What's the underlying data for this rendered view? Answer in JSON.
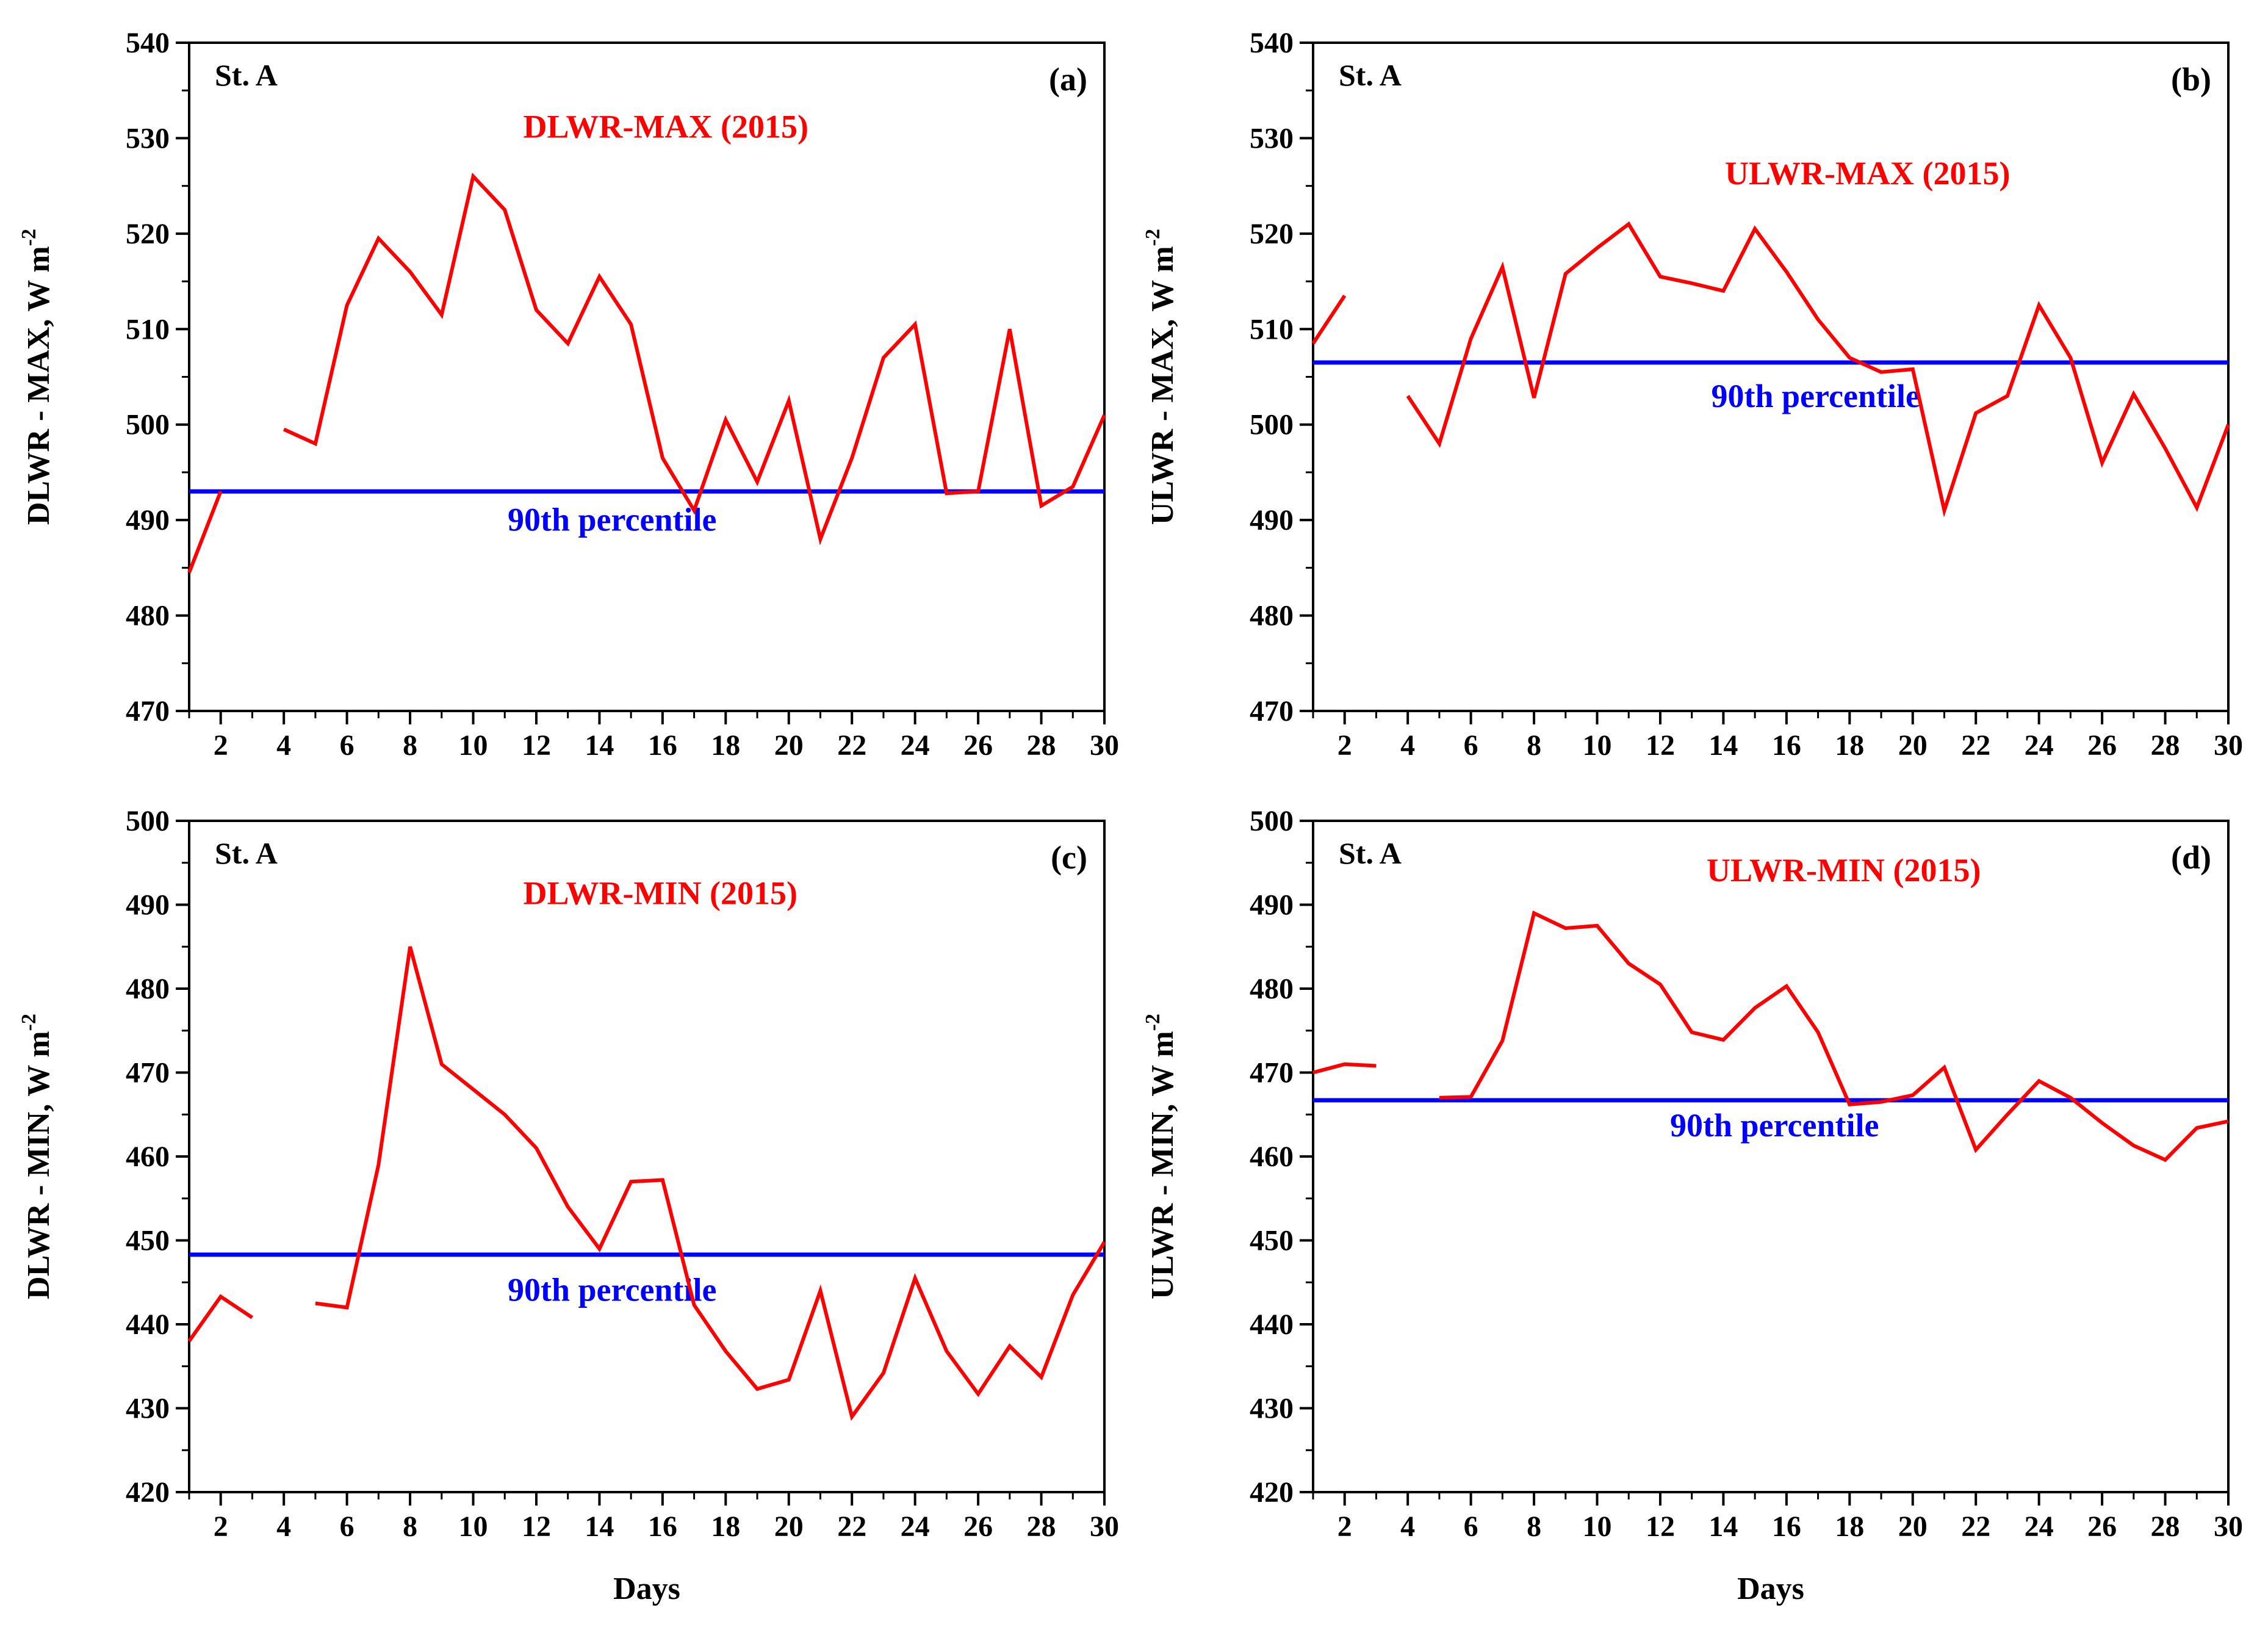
{
  "chart_data": [
    {
      "type": "line",
      "panel": "(a)",
      "station": "St. A",
      "series_label": "DLWR-MAX (2015)",
      "ylabel": "DLWR - MAX,  W m",
      "ylabel_sup": "-2",
      "xlabel": "",
      "ylim": [
        470,
        540
      ],
      "yticks": [
        470,
        480,
        490,
        500,
        510,
        520,
        530,
        540
      ],
      "xlim": [
        1,
        30
      ],
      "xticks": [
        2,
        4,
        6,
        8,
        10,
        12,
        14,
        16,
        18,
        20,
        22,
        24,
        26,
        28,
        30
      ],
      "x": [
        1,
        2,
        3,
        4,
        5,
        6,
        7,
        8,
        9,
        10,
        11,
        12,
        13,
        14,
        15,
        16,
        17,
        18,
        19,
        20,
        21,
        22,
        23,
        24,
        25,
        26,
        27,
        28,
        29,
        30
      ],
      "series": [
        {
          "values": [
            484.5,
            493,
            null,
            499.5,
            498,
            512.5,
            519.5,
            516,
            511.5,
            526,
            522.5,
            512,
            508.5,
            515.5,
            510.5,
            496.5,
            491,
            500.5,
            494,
            502.5,
            488,
            496.5,
            507,
            510.5,
            492.8,
            493,
            510,
            491.5,
            493.5,
            501
          ],
          "color": "#ff0000"
        }
      ],
      "percentile": {
        "label": "90th percentile",
        "value": 493,
        "color": "#0000ff"
      }
    },
    {
      "type": "line",
      "panel": "(b)",
      "station": "St. A",
      "series_label": "ULWR-MAX (2015)",
      "ylabel": "ULWR - MAX,  W m",
      "ylabel_sup": "-2",
      "xlabel": "",
      "ylim": [
        470,
        540
      ],
      "yticks": [
        470,
        480,
        490,
        500,
        510,
        520,
        530,
        540
      ],
      "xlim": [
        1,
        30
      ],
      "xticks": [
        2,
        4,
        6,
        8,
        10,
        12,
        14,
        16,
        18,
        20,
        22,
        24,
        26,
        28,
        30
      ],
      "x": [
        1,
        2,
        3,
        4,
        5,
        6,
        7,
        8,
        9,
        10,
        11,
        12,
        13,
        14,
        15,
        16,
        17,
        18,
        19,
        20,
        21,
        22,
        23,
        24,
        25,
        26,
        27,
        28,
        29,
        30
      ],
      "series": [
        {
          "values": [
            508.5,
            513.5,
            null,
            503,
            498,
            509,
            516.5,
            502.8,
            515.8,
            518.5,
            521,
            515.5,
            514.8,
            514,
            520.5,
            516,
            511,
            507,
            505.5,
            505.8,
            491,
            501.2,
            503,
            512.5,
            507,
            496,
            503.2,
            497.5,
            491.3,
            500
          ],
          "color": "#ff0000"
        }
      ],
      "percentile": {
        "label": "90th percentile",
        "value": 506.5,
        "color": "#0000ff"
      }
    },
    {
      "type": "line",
      "panel": "(c)",
      "station": "St. A",
      "series_label": "DLWR-MIN (2015)",
      "ylabel": "DLWR - MIN,  W m",
      "ylabel_sup": "-2",
      "xlabel": "Days",
      "ylim": [
        420,
        500
      ],
      "yticks": [
        420,
        430,
        440,
        450,
        460,
        470,
        480,
        490,
        500
      ],
      "xlim": [
        1,
        30
      ],
      "xticks": [
        2,
        4,
        6,
        8,
        10,
        12,
        14,
        16,
        18,
        20,
        22,
        24,
        26,
        28,
        30
      ],
      "x": [
        1,
        2,
        3,
        4,
        5,
        6,
        7,
        8,
        9,
        10,
        11,
        12,
        13,
        14,
        15,
        16,
        17,
        18,
        19,
        20,
        21,
        22,
        23,
        24,
        25,
        26,
        27,
        28,
        29,
        30
      ],
      "series": [
        {
          "values": [
            438,
            443.3,
            440.8,
            null,
            442.5,
            442,
            459,
            485,
            471,
            468,
            465,
            461,
            454,
            449,
            457,
            457.2,
            442.3,
            436.8,
            432.3,
            433.4,
            444,
            429,
            434.2,
            445.5,
            436.8,
            431.7,
            437.4,
            433.7,
            443.5,
            449.8
          ],
          "color": "#ff0000"
        }
      ],
      "percentile": {
        "label": "90th percentile",
        "value": 448.3,
        "color": "#0000ff"
      }
    },
    {
      "type": "line",
      "panel": "(d)",
      "station": "St. A",
      "series_label": "ULWR-MIN (2015)",
      "ylabel": "ULWR - MIN,  W m",
      "ylabel_sup": "-2",
      "xlabel": "Days",
      "ylim": [
        420,
        500
      ],
      "yticks": [
        420,
        430,
        440,
        450,
        460,
        470,
        480,
        490,
        500
      ],
      "xlim": [
        1,
        30
      ],
      "xticks": [
        2,
        4,
        6,
        8,
        10,
        12,
        14,
        16,
        18,
        20,
        22,
        24,
        26,
        28,
        30
      ],
      "x": [
        1,
        2,
        3,
        4,
        5,
        6,
        7,
        8,
        9,
        10,
        11,
        12,
        13,
        14,
        15,
        16,
        17,
        18,
        19,
        20,
        21,
        22,
        23,
        24,
        25,
        26,
        27,
        28,
        29,
        30
      ],
      "series": [
        {
          "values": [
            470,
            471,
            470.8,
            null,
            467,
            467.1,
            473.8,
            489,
            487.2,
            487.5,
            483,
            480.5,
            474.8,
            473.9,
            477.7,
            480.3,
            474.8,
            466.2,
            466.5,
            467.3,
            470.6,
            460.8,
            465,
            469,
            467,
            464,
            461.3,
            459.6,
            463.4,
            464.2
          ],
          "color": "#ff0000"
        }
      ],
      "percentile": {
        "label": "90th percentile",
        "value": 466.7,
        "color": "#0000ff"
      }
    }
  ]
}
